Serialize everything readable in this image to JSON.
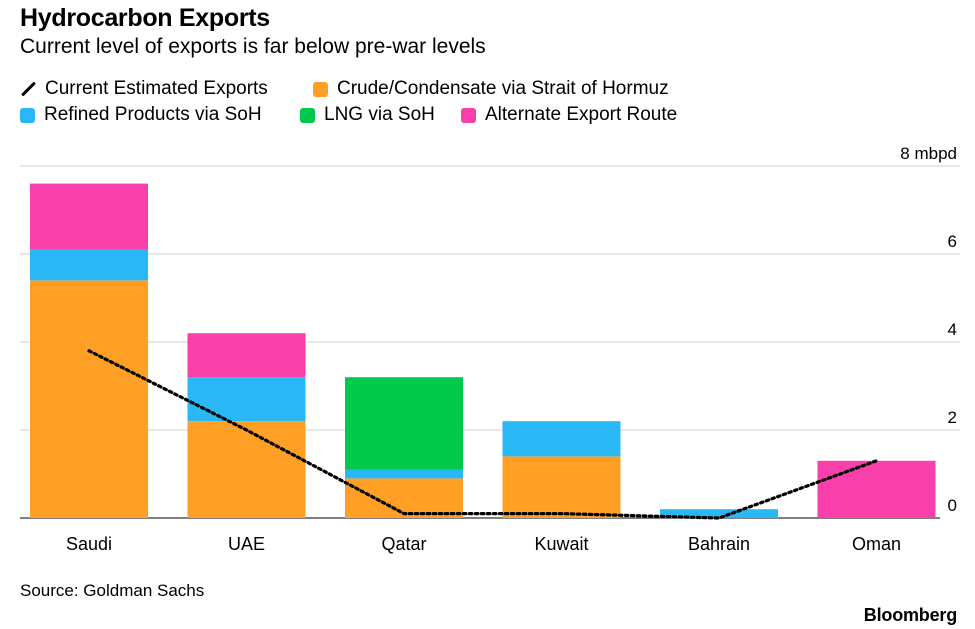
{
  "header": {
    "title": "Hydrocarbon Exports",
    "subtitle": "Current level of exports is far below pre-war levels"
  },
  "legend": {
    "items": [
      {
        "label": "Current Estimated Exports",
        "kind": "line",
        "color": "#000000"
      },
      {
        "label": "Crude/Condensate via Strait of Hormuz",
        "kind": "box",
        "color": "#FF9F25"
      },
      {
        "label": "Refined Products via SoH",
        "kind": "box",
        "color": "#29B8F5"
      },
      {
        "label": "LNG via SoH",
        "kind": "box",
        "color": "#00C94B"
      },
      {
        "label": "Alternate Export Route",
        "kind": "box",
        "color": "#F83FAA"
      }
    ]
  },
  "chart_data": {
    "type": "bar",
    "stacked": true,
    "categories": [
      "Saudi",
      "UAE",
      "Qatar",
      "Kuwait",
      "Bahrain",
      "Oman"
    ],
    "series": [
      {
        "name": "Crude/Condensate via Strait of Hormuz",
        "color": "#FF9F25",
        "values": [
          5.4,
          2.2,
          0.9,
          1.4,
          0.0,
          0.0
        ]
      },
      {
        "name": "Refined Products via SoH",
        "color": "#29B8F5",
        "values": [
          0.7,
          1.0,
          0.2,
          0.8,
          0.2,
          0.0
        ]
      },
      {
        "name": "LNG via SoH",
        "color": "#00C94B",
        "values": [
          0.0,
          0.0,
          2.1,
          0.0,
          0.0,
          0.0
        ]
      },
      {
        "name": "Alternate Export Route",
        "color": "#F83FAA",
        "values": [
          1.5,
          1.0,
          0.0,
          0.0,
          0.0,
          1.3
        ]
      }
    ],
    "line_series": {
      "name": "Current Estimated Exports",
      "color": "#000000",
      "style": "dotted",
      "values": [
        3.8,
        2.0,
        0.1,
        0.1,
        0.0,
        1.3
      ]
    },
    "y_ticks": [
      0,
      2,
      4,
      6,
      8
    ],
    "y_unit": "mbpd",
    "ylim": [
      0,
      8
    ],
    "axis_side": "right",
    "grid": true
  },
  "footer": {
    "source": "Source: Goldman Sachs",
    "brand": "Bloomberg"
  }
}
